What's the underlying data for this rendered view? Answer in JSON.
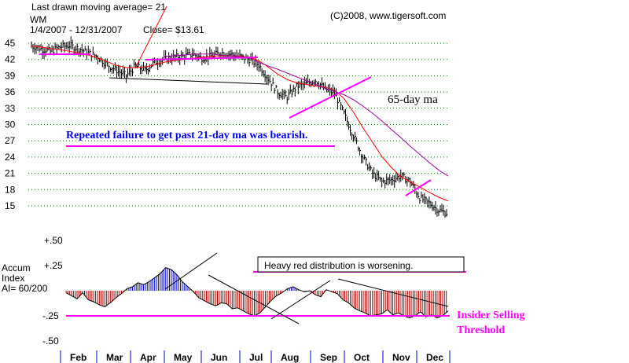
{
  "header": {
    "last_ma": "Last drawn moving average= 21",
    "symbol": "WM",
    "date_range": "1/4/2007 - 12/31/2007",
    "close": "Close= $13.61",
    "copyright": "(C)2008, www.tigersoft.com"
  },
  "annotations": {
    "failure_note": "Repeated failure to get past 21-day ma was bearish.",
    "ma65_label": "65-day ma",
    "heavy_red": "Heavy red distribution is worsening.",
    "insider_line1": "Insider Selling",
    "insider_line2": "Threshold"
  },
  "accum_labels": {
    "line1": "Accum",
    "line2": "Index",
    "line3": "AI= 60/200"
  },
  "colors": {
    "bars": "#000000",
    "ma21": "#ff0000",
    "ma65": "#a000a0",
    "trendline": "#ff00ff",
    "grid": "#008000",
    "accum_red": "#b00000",
    "accum_blue": "#0000c0",
    "note_blue": "#0000ff"
  },
  "chart_data": [
    {
      "type": "line",
      "name": "WM daily price",
      "y_ticks": [
        45,
        42,
        39,
        36,
        33,
        30,
        27,
        24,
        21,
        18,
        15
      ],
      "x_ticks": [
        "Feb",
        "Mar",
        "Apr",
        "May",
        "Jun",
        "Jul",
        "Aug",
        "Sep",
        "Oct",
        "Nov",
        "Dec"
      ],
      "ylim": [
        13,
        46
      ],
      "grid": "dotted horizontal",
      "series": [
        {
          "values": [
            44.5,
            44.0,
            43.5,
            44.3,
            44.6,
            44.0,
            43.2,
            42.5,
            41.0,
            40.0,
            39.0,
            40.8,
            40.0,
            41.5,
            42.0,
            42.4,
            42.6,
            43.0,
            42.3,
            42.6,
            43.3,
            43.0,
            42.5,
            42.0,
            41.0,
            38.5,
            36.0,
            35.0,
            37.0,
            37.5,
            38.2,
            36.5,
            35.8,
            32.0,
            28.0,
            24.0,
            21.0,
            19.5,
            19.8,
            20.5,
            19.5,
            16.5,
            15.5,
            14.2,
            13.6
          ]
        },
        {
          "name": "21-day ma",
          "values": [
            44.5,
            44.3,
            44.0,
            43.8,
            43.5,
            43.2,
            42.8,
            42.3,
            41.6,
            40.9,
            40.5,
            40.5,
            40.6,
            41.0,
            41.5,
            41.8,
            42.0,
            42.2,
            42.4,
            42.6,
            42.7,
            42.7,
            42.6,
            42.4,
            41.8,
            40.6,
            39.3,
            38.3,
            37.7,
            37.4,
            37.1,
            36.9,
            36.4,
            34.8,
            32.3,
            29.4,
            26.8,
            24.1,
            22.1,
            20.4,
            19.4,
            18.5,
            17.5,
            16.6,
            15.9
          ]
        },
        {
          "name": "65-day ma",
          "values": [
            null,
            null,
            null,
            null,
            null,
            null,
            null,
            null,
            null,
            null,
            null,
            null,
            null,
            null,
            42.5,
            42.7,
            42.8,
            43.0,
            43.0,
            43.0,
            42.8,
            42.7,
            42.5,
            42.3,
            41.5,
            40.8,
            40.2,
            39.5,
            38.8,
            38.1,
            37.4,
            36.7,
            36.1,
            35.5,
            34.6,
            33.4,
            32.1,
            30.7,
            29.1,
            27.6,
            26.0,
            24.5,
            23.0,
            21.6,
            20.5
          ]
        }
      ]
    },
    {
      "type": "bar",
      "name": "Accumulation Index",
      "y_ticks": [
        ".50",
        "+.25",
        "-.25",
        "-.50"
      ],
      "ylim": [
        -0.5,
        0.5
      ],
      "threshold": -0.25,
      "values": [
        -0.02,
        -0.05,
        -0.08,
        -0.02,
        -0.09,
        -0.11,
        -0.14,
        -0.16,
        -0.12,
        -0.07,
        -0.03,
        0.02,
        0.04,
        0.08,
        0.06,
        0.09,
        0.13,
        0.17,
        0.23,
        0.21,
        0.16,
        0.09,
        0.04,
        -0.01,
        -0.07,
        -0.1,
        -0.13,
        -0.15,
        -0.12,
        -0.13,
        -0.18,
        -0.17,
        -0.2,
        -0.23,
        -0.25,
        -0.22,
        -0.16,
        -0.1,
        -0.05,
        -0.02,
        0.02,
        0.04,
        0.01,
        -0.01,
        0.0,
        -0.04,
        -0.06,
        0.01,
        -0.01,
        -0.03,
        -0.09,
        -0.12,
        -0.17,
        -0.2,
        -0.22,
        -0.25,
        -0.24,
        -0.23,
        -0.19,
        -0.24,
        -0.22,
        -0.25,
        -0.27,
        -0.25,
        -0.21,
        -0.26,
        -0.24,
        -0.27,
        -0.25,
        -0.2
      ]
    }
  ]
}
